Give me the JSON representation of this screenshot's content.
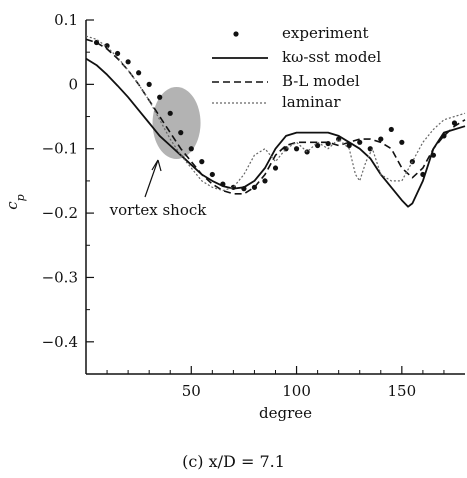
{
  "caption": "(c) x/D = 7.1",
  "chart_data": {
    "type": "line",
    "xlabel": "degree",
    "ylabel": "c_p",
    "xlim": [
      0,
      180
    ],
    "ylim": [
      -0.45,
      0.1
    ],
    "xticks": [
      50,
      100,
      150
    ],
    "yticks": [
      0.1,
      0,
      -0.1,
      -0.2,
      -0.3,
      -0.4
    ],
    "xtick_labels": [
      "50",
      "100",
      "150"
    ],
    "ytick_labels": [
      "0.1",
      "0",
      "−0.1",
      "−0.2",
      "−0.3",
      "−0.4"
    ],
    "grid": false,
    "legend_position": "top-right",
    "annotation": {
      "text": "vortex shock",
      "target_x": 43,
      "target_y": -0.06
    },
    "series": [
      {
        "name": "experiment",
        "style": "markers",
        "x": [
          5,
          10,
          15,
          20,
          25,
          30,
          35,
          40,
          45,
          50,
          55,
          60,
          65,
          70,
          75,
          80,
          85,
          90,
          95,
          100,
          105,
          110,
          115,
          120,
          125,
          130,
          135,
          140,
          145,
          150,
          155,
          160,
          165,
          170,
          175
        ],
        "y": [
          0.065,
          0.06,
          0.048,
          0.035,
          0.018,
          0.0,
          -0.02,
          -0.045,
          -0.075,
          -0.1,
          -0.12,
          -0.14,
          -0.155,
          -0.16,
          -0.162,
          -0.16,
          -0.15,
          -0.13,
          -0.1,
          -0.1,
          -0.105,
          -0.095,
          -0.092,
          -0.085,
          -0.095,
          -0.09,
          -0.1,
          -0.085,
          -0.07,
          -0.09,
          -0.12,
          -0.14,
          -0.11,
          -0.08,
          -0.06
        ]
      },
      {
        "name": "kω-sst model",
        "style": "solid",
        "x": [
          0,
          5,
          10,
          15,
          20,
          25,
          30,
          35,
          40,
          45,
          50,
          55,
          60,
          65,
          70,
          75,
          80,
          85,
          90,
          95,
          100,
          105,
          110,
          115,
          120,
          125,
          130,
          135,
          140,
          145,
          150,
          153,
          155,
          160,
          165,
          170,
          175,
          180
        ],
        "y": [
          0.04,
          0.03,
          0.015,
          -0.002,
          -0.02,
          -0.04,
          -0.06,
          -0.08,
          -0.095,
          -0.11,
          -0.125,
          -0.14,
          -0.15,
          -0.158,
          -0.162,
          -0.16,
          -0.15,
          -0.13,
          -0.1,
          -0.08,
          -0.075,
          -0.075,
          -0.075,
          -0.075,
          -0.08,
          -0.09,
          -0.1,
          -0.115,
          -0.14,
          -0.16,
          -0.18,
          -0.19,
          -0.185,
          -0.15,
          -0.1,
          -0.075,
          -0.07,
          -0.065
        ]
      },
      {
        "name": "B-L model",
        "style": "dashed",
        "x": [
          0,
          5,
          10,
          15,
          20,
          25,
          30,
          35,
          40,
          45,
          50,
          55,
          60,
          65,
          70,
          75,
          80,
          85,
          90,
          95,
          100,
          105,
          110,
          115,
          120,
          125,
          130,
          135,
          140,
          145,
          150,
          155,
          160,
          165,
          170,
          175,
          180
        ],
        "y": [
          0.07,
          0.065,
          0.055,
          0.04,
          0.022,
          0.0,
          -0.025,
          -0.05,
          -0.075,
          -0.1,
          -0.12,
          -0.14,
          -0.155,
          -0.165,
          -0.17,
          -0.17,
          -0.16,
          -0.14,
          -0.11,
          -0.095,
          -0.09,
          -0.09,
          -0.09,
          -0.09,
          -0.095,
          -0.09,
          -0.085,
          -0.085,
          -0.09,
          -0.1,
          -0.13,
          -0.145,
          -0.13,
          -0.1,
          -0.08,
          -0.065,
          -0.055
        ]
      },
      {
        "name": "laminar",
        "style": "dotted",
        "x": [
          0,
          5,
          10,
          15,
          20,
          25,
          30,
          35,
          40,
          45,
          50,
          55,
          60,
          65,
          70,
          75,
          80,
          85,
          90,
          95,
          100,
          105,
          110,
          115,
          120,
          125,
          128,
          130,
          133,
          136,
          140,
          145,
          150,
          155,
          160,
          165,
          170,
          175,
          180
        ],
        "y": [
          0.075,
          0.07,
          0.058,
          0.042,
          0.022,
          0.0,
          -0.025,
          -0.055,
          -0.085,
          -0.11,
          -0.13,
          -0.15,
          -0.16,
          -0.165,
          -0.16,
          -0.14,
          -0.11,
          -0.1,
          -0.12,
          -0.1,
          -0.09,
          -0.105,
          -0.09,
          -0.1,
          -0.085,
          -0.1,
          -0.14,
          -0.15,
          -0.12,
          -0.1,
          -0.14,
          -0.15,
          -0.15,
          -0.12,
          -0.09,
          -0.07,
          -0.055,
          -0.05,
          -0.045
        ]
      }
    ]
  }
}
